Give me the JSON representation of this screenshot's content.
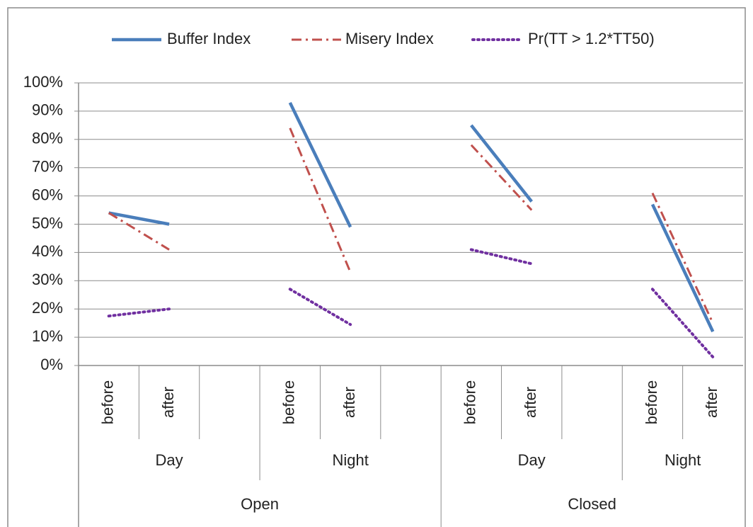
{
  "chart_data": {
    "type": "line",
    "categories": [
      [
        "Open",
        "Day",
        "before"
      ],
      [
        "Open",
        "Day",
        "after"
      ],
      [
        "Open",
        "Day",
        null
      ],
      [
        "Open",
        "Night",
        "before"
      ],
      [
        "Open",
        "Night",
        "after"
      ],
      [
        "Open",
        "Night",
        null
      ],
      [
        "Closed",
        "Day",
        "before"
      ],
      [
        "Closed",
        "Day",
        "after"
      ],
      [
        "Closed",
        "Day",
        null
      ],
      [
        "Closed",
        "Night",
        "before"
      ],
      [
        "Closed",
        "Night",
        "after"
      ]
    ],
    "series": [
      {
        "name": "Buffer Index",
        "color": "#4a7ebb",
        "values": [
          54,
          50,
          null,
          93,
          49,
          null,
          85,
          58,
          null,
          57,
          12
        ]
      },
      {
        "name": "Misery Index",
        "color": "#c0504d",
        "values": [
          54,
          41,
          null,
          84,
          33,
          null,
          78,
          55,
          null,
          61,
          15
        ]
      },
      {
        "name": "Pr(TT > 1.2*TT50)",
        "color": "#7030a0",
        "values": [
          17.5,
          20,
          null,
          27,
          14.5,
          null,
          41,
          36,
          null,
          27,
          3
        ]
      }
    ],
    "ylim": [
      0,
      100
    ],
    "yticks": [
      {
        "value": 0,
        "label": "0%"
      },
      {
        "value": 10,
        "label": "10%"
      },
      {
        "value": 20,
        "label": "20%"
      },
      {
        "value": 30,
        "label": "30%"
      },
      {
        "value": 40,
        "label": "40%"
      },
      {
        "value": 50,
        "label": "50%"
      },
      {
        "value": 60,
        "label": "60%"
      },
      {
        "value": 70,
        "label": "70%"
      },
      {
        "value": 80,
        "label": "80%"
      },
      {
        "value": 90,
        "label": "90%"
      },
      {
        "value": 100,
        "label": "100%"
      }
    ],
    "grid": true,
    "legend": "top"
  }
}
